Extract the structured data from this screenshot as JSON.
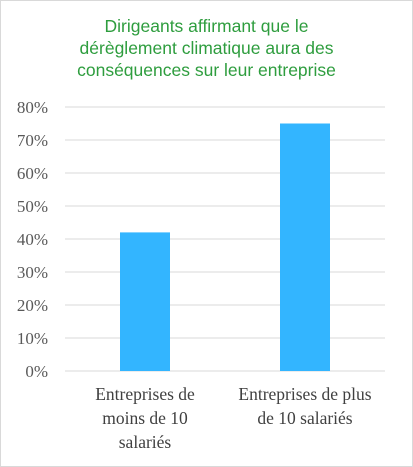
{
  "chart_data": {
    "type": "bar",
    "title_lines": [
      "Dirigeants affirmant que le",
      "dérèglement climatique aura  des",
      "conséquences sur leur entreprise"
    ],
    "categories": [
      [
        "Entreprises de",
        "moins de 10",
        "salariés"
      ],
      [
        "Entreprises de plus",
        "de 10 salariés"
      ]
    ],
    "values": [
      0.42,
      0.75
    ],
    "ylim": [
      0,
      0.8
    ],
    "yticks": [
      "0%",
      "10%",
      "20%",
      "30%",
      "40%",
      "50%",
      "60%",
      "70%",
      "80%"
    ],
    "grid": true,
    "bar_color": "#33b5ff",
    "grid_color": "#d9d9d9",
    "title_color": "#2e9d3e"
  }
}
